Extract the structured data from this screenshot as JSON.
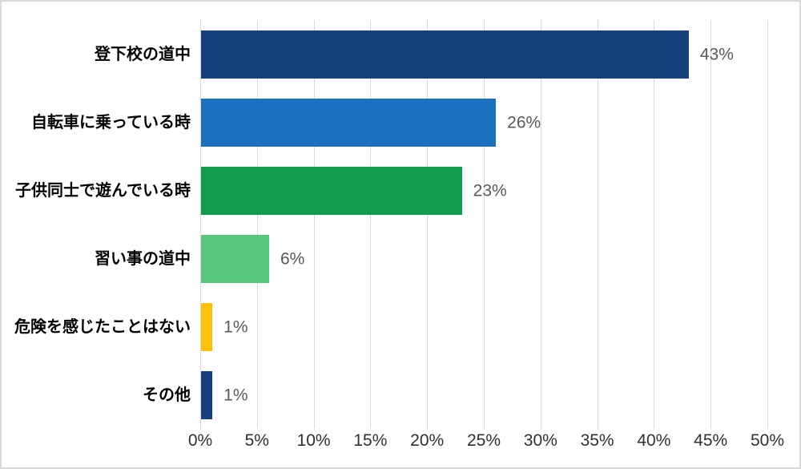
{
  "chart_data": {
    "type": "bar",
    "orientation": "horizontal",
    "title": "",
    "xlabel": "",
    "ylabel": "",
    "categories": [
      "登下校の道中",
      "自転車に乗っている時",
      "子供同士で遊んでいる時",
      "習い事の道中",
      "危険を感じたことはない",
      "その他"
    ],
    "values": [
      43,
      26,
      23,
      6,
      1,
      1
    ],
    "value_labels": [
      "43%",
      "26%",
      "23%",
      "6%",
      "1%",
      "1%"
    ],
    "bar_colors": [
      "#15417E",
      "#1B70C0",
      "#0F9C4C",
      "#57C77E",
      "#FCC306",
      "#15417E"
    ],
    "xlim": [
      0,
      50
    ],
    "x_tick_step": 5,
    "x_tick_labels": [
      "0%",
      "5%",
      "10%",
      "15%",
      "20%",
      "25%",
      "30%",
      "35%",
      "40%",
      "45%",
      "50%"
    ],
    "grid": true,
    "legend": false,
    "colors": {
      "gridline": "#d9d9d9",
      "frame_border": "#d9d9d9",
      "background": "#ffffff",
      "value_label": "#595959",
      "axis_tick_label": "#303030",
      "category_label": "#000000"
    }
  }
}
